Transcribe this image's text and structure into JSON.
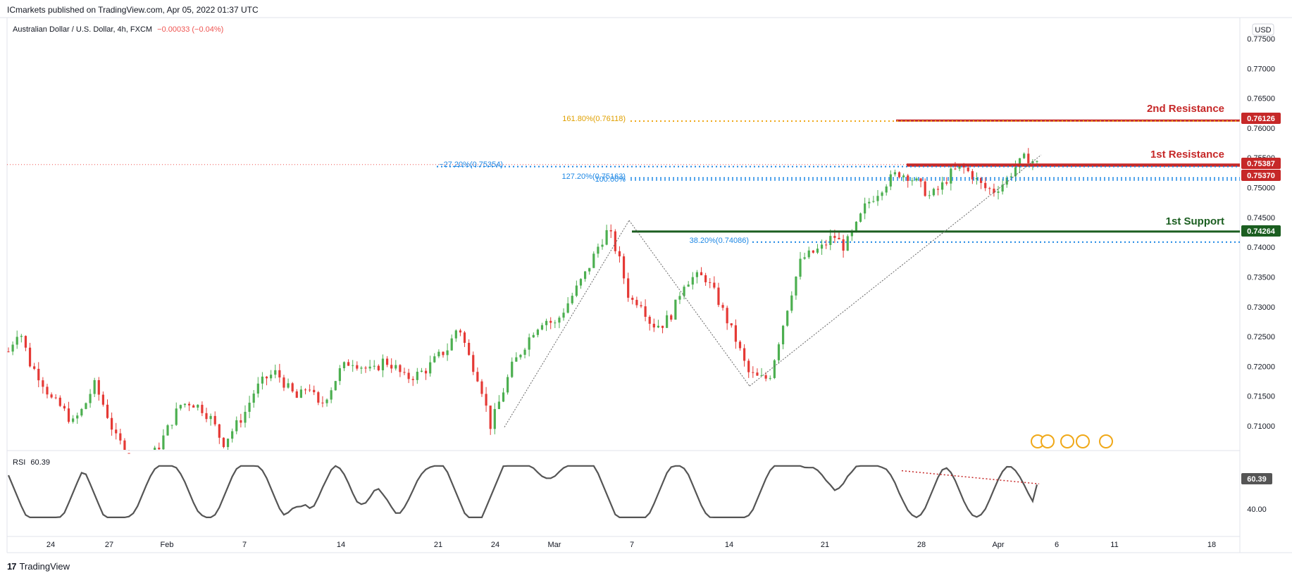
{
  "header": {
    "publisher": "ICmarkets published on TradingView.com, Apr 05, 2022 01:37 UTC"
  },
  "legend": {
    "symbol": "Australian Dollar / U.S. Dollar, 4h, FXCM",
    "change": "−0.00033 (−0.04%)"
  },
  "currency_badge": "USD",
  "colors": {
    "up": "#26a69a",
    "down": "#ef5350",
    "up_candle": "#4caf50",
    "down_candle": "#e53935",
    "resistance": "#c62828",
    "support": "#1b5e20",
    "fib": "#1e88e5",
    "fib_ext": "#f0a818",
    "rsi_line": "#555555"
  },
  "annotations": {
    "r2_label": "2nd Resistance",
    "r2_value": "0.76126",
    "r1_label": "1st Resistance",
    "r1_value_a": "0.75387",
    "r1_value_b": "0.75370",
    "s1_label": "1st Support",
    "s1_value": "0.74264",
    "fib_1618": "161.80%(0.76118)",
    "fib_n272": "−27.20%(0.75354)",
    "fib_1272": "127.20%(0.75163)",
    "fib_100": "100.00%",
    "fib_382": "38.20%(0.74086)"
  },
  "rsi": {
    "label": "RSI",
    "value": "60.39",
    "tick": "40.00"
  },
  "footer": {
    "brand": "TradingView",
    "mark": "17"
  },
  "chart_data": {
    "type": "candlestick",
    "y_axis_ticks": [
      "0.77500",
      "0.77000",
      "0.76500",
      "0.76000",
      "0.75500",
      "0.75000",
      "0.74500",
      "0.74000",
      "0.73500",
      "0.73000",
      "0.72500",
      "0.72000",
      "0.71500",
      "0.71000"
    ],
    "ylim": [
      0.7063,
      0.7792
    ],
    "x_axis_ticks": [
      "24",
      "27",
      "Feb",
      "7",
      "14",
      "21",
      "24",
      "Mar",
      "7",
      "14",
      "21",
      "28",
      "Apr",
      "6",
      "11",
      "18"
    ],
    "price_path": [
      [
        0.7225,
        0.7265,
        0.7205,
        0.718,
        0.7145,
        0.713,
        0.7105,
        0.713,
        0.717,
        0.713,
        0.708,
        0.706,
        0.704,
        0.704,
        0.7065,
        0.71,
        0.7135,
        0.714,
        0.713,
        0.711,
        0.707,
        0.7095,
        0.712,
        0.716,
        0.718,
        0.719,
        0.7165,
        0.7145,
        0.717,
        0.713,
        0.716,
        0.7195,
        0.721,
        0.72,
        0.719,
        0.721,
        0.72,
        0.718,
        0.7185,
        0.7195,
        0.7215,
        0.723,
        0.727,
        0.7215,
        0.7175,
        0.71,
        0.715,
        0.72,
        0.723,
        0.726,
        0.728,
        0.727,
        0.73,
        0.733,
        0.736,
        0.74,
        0.743,
        0.738,
        0.731,
        0.731,
        0.727,
        0.727,
        0.729,
        0.734,
        0.735,
        0.735,
        0.732,
        0.728,
        0.724,
        0.719,
        0.718,
        0.718,
        0.725,
        0.732,
        0.738,
        0.739,
        0.74,
        0.742,
        0.74,
        0.743,
        0.747,
        0.749,
        0.751,
        0.7525,
        0.752,
        0.7505,
        0.7485,
        0.75,
        0.7525,
        0.7535,
        0.752,
        0.75,
        0.7495,
        0.751,
        0.7535,
        0.7552,
        0.754
      ]
    ],
    "levels": [
      {
        "name": "2nd Resistance",
        "value": 0.76126
      },
      {
        "name": "1st Resistance",
        "value": 0.75387
      },
      {
        "name": "1st Resistance",
        "value": 0.7537
      },
      {
        "name": "1st Support",
        "value": 0.74264
      }
    ],
    "fib_levels": [
      {
        "label": "161.80%(0.76118)",
        "value": 0.76118
      },
      {
        "label": "−27.20%(0.75354)",
        "value": 0.75354
      },
      {
        "label": "127.20%(0.75163)",
        "value": 0.75163
      },
      {
        "label": "100.00%",
        "value": 0.7513
      },
      {
        "label": "38.20%(0.74086)",
        "value": 0.74086
      }
    ],
    "last_price": 0.75387,
    "rsi_last": 60.39,
    "rsi_ticks": [
      "60.39",
      "40.00"
    ]
  }
}
